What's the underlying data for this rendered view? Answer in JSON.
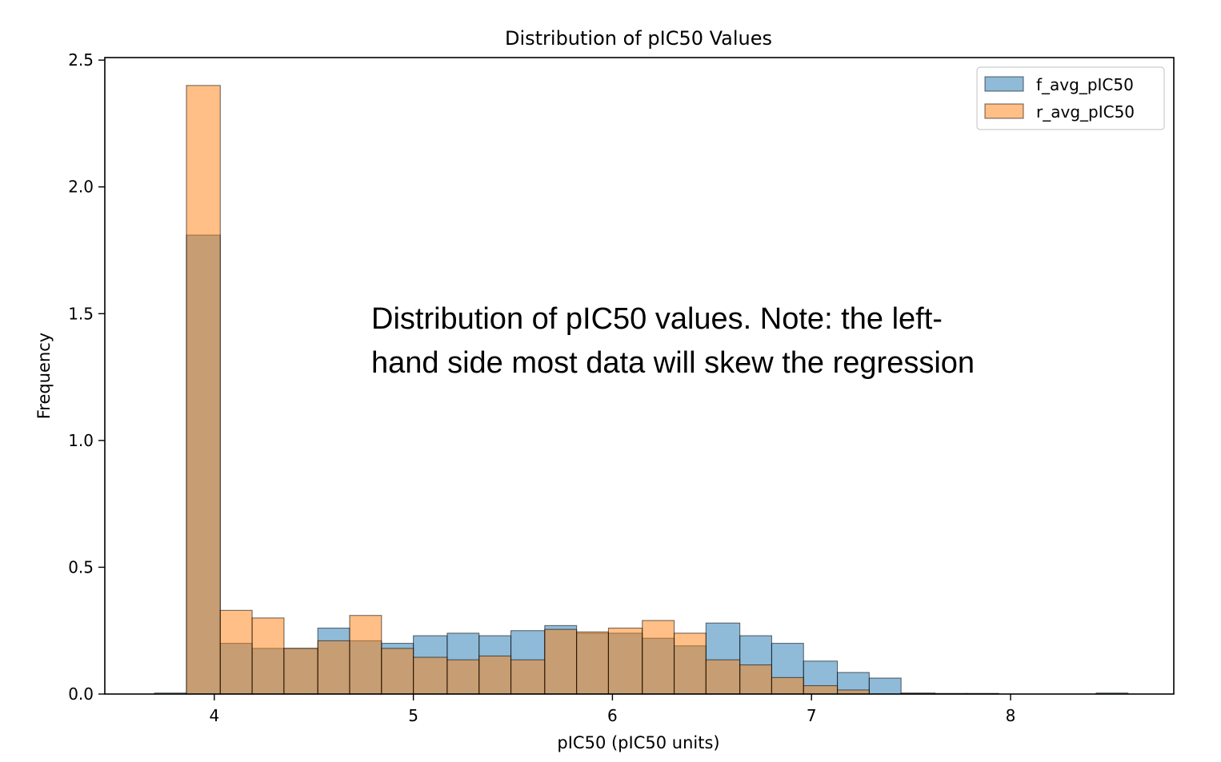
{
  "chart_data": {
    "type": "histogram",
    "title": "Distribution of pIC50 Values",
    "xlabel": "pIC50 (pIC50 units)",
    "ylabel": "Frequency",
    "xlim": [
      3.45,
      8.82
    ],
    "ylim": [
      0,
      2.51
    ],
    "x_ticks": [
      4,
      5,
      6,
      7,
      8
    ],
    "y_ticks": [
      0.0,
      0.5,
      1.0,
      1.5,
      2.0,
      2.5
    ],
    "x_tick_labels": [
      "4",
      "5",
      "6",
      "7",
      "8"
    ],
    "y_tick_labels": [
      "0.0",
      "0.5",
      "1.0",
      "1.5",
      "2.0",
      "2.5"
    ],
    "legend_position": "top-right",
    "grid": false,
    "series": [
      {
        "name": "f_avg_pIC50",
        "color": "#1f77b4",
        "bins": [
          [
            3.7,
            3.86,
            0.004
          ],
          [
            3.86,
            4.03,
            1.81
          ],
          [
            4.03,
            4.19,
            0.2
          ],
          [
            4.19,
            4.35,
            0.18
          ],
          [
            4.35,
            4.52,
            0.18
          ],
          [
            4.52,
            4.68,
            0.26
          ],
          [
            4.68,
            4.84,
            0.21
          ],
          [
            4.84,
            5.0,
            0.2
          ],
          [
            5.0,
            5.17,
            0.23
          ],
          [
            5.17,
            5.33,
            0.24
          ],
          [
            5.33,
            5.49,
            0.23
          ],
          [
            5.49,
            5.66,
            0.25
          ],
          [
            5.66,
            5.82,
            0.27
          ],
          [
            5.82,
            5.98,
            0.24
          ],
          [
            5.98,
            6.15,
            0.24
          ],
          [
            6.15,
            6.31,
            0.22
          ],
          [
            6.31,
            6.47,
            0.19
          ],
          [
            6.47,
            6.64,
            0.28
          ],
          [
            6.64,
            6.8,
            0.23
          ],
          [
            6.8,
            6.96,
            0.2
          ],
          [
            6.96,
            7.13,
            0.13
          ],
          [
            7.13,
            7.29,
            0.085
          ],
          [
            7.29,
            7.45,
            0.063
          ],
          [
            7.45,
            7.62,
            0.004
          ],
          [
            7.62,
            7.78,
            0.002
          ],
          [
            7.78,
            7.94,
            0.002
          ],
          [
            8.43,
            8.59,
            0.004
          ]
        ]
      },
      {
        "name": "r_avg_pIC50",
        "color": "#ff7f0e",
        "bins": [
          [
            3.86,
            4.03,
            2.4
          ],
          [
            4.03,
            4.19,
            0.33
          ],
          [
            4.19,
            4.35,
            0.3
          ],
          [
            4.35,
            4.52,
            0.18
          ],
          [
            4.52,
            4.68,
            0.21
          ],
          [
            4.68,
            4.84,
            0.31
          ],
          [
            4.84,
            5.0,
            0.18
          ],
          [
            5.0,
            5.17,
            0.145
          ],
          [
            5.17,
            5.33,
            0.135
          ],
          [
            5.33,
            5.49,
            0.15
          ],
          [
            5.49,
            5.66,
            0.135
          ],
          [
            5.66,
            5.82,
            0.255
          ],
          [
            5.82,
            5.98,
            0.245
          ],
          [
            5.98,
            6.15,
            0.26
          ],
          [
            6.15,
            6.31,
            0.29
          ],
          [
            6.31,
            6.47,
            0.24
          ],
          [
            6.47,
            6.64,
            0.135
          ],
          [
            6.64,
            6.8,
            0.115
          ],
          [
            6.8,
            6.96,
            0.065
          ],
          [
            6.96,
            7.13,
            0.033
          ],
          [
            7.13,
            7.29,
            0.016
          ],
          [
            7.45,
            7.62,
            0.002
          ],
          [
            7.62,
            7.78,
            0.002
          ],
          [
            7.78,
            7.94,
            0.002
          ]
        ]
      }
    ]
  },
  "annotation": {
    "text": "Distribution of pIC50 values. Note: the left-\nhand side most data will skew the regression"
  }
}
